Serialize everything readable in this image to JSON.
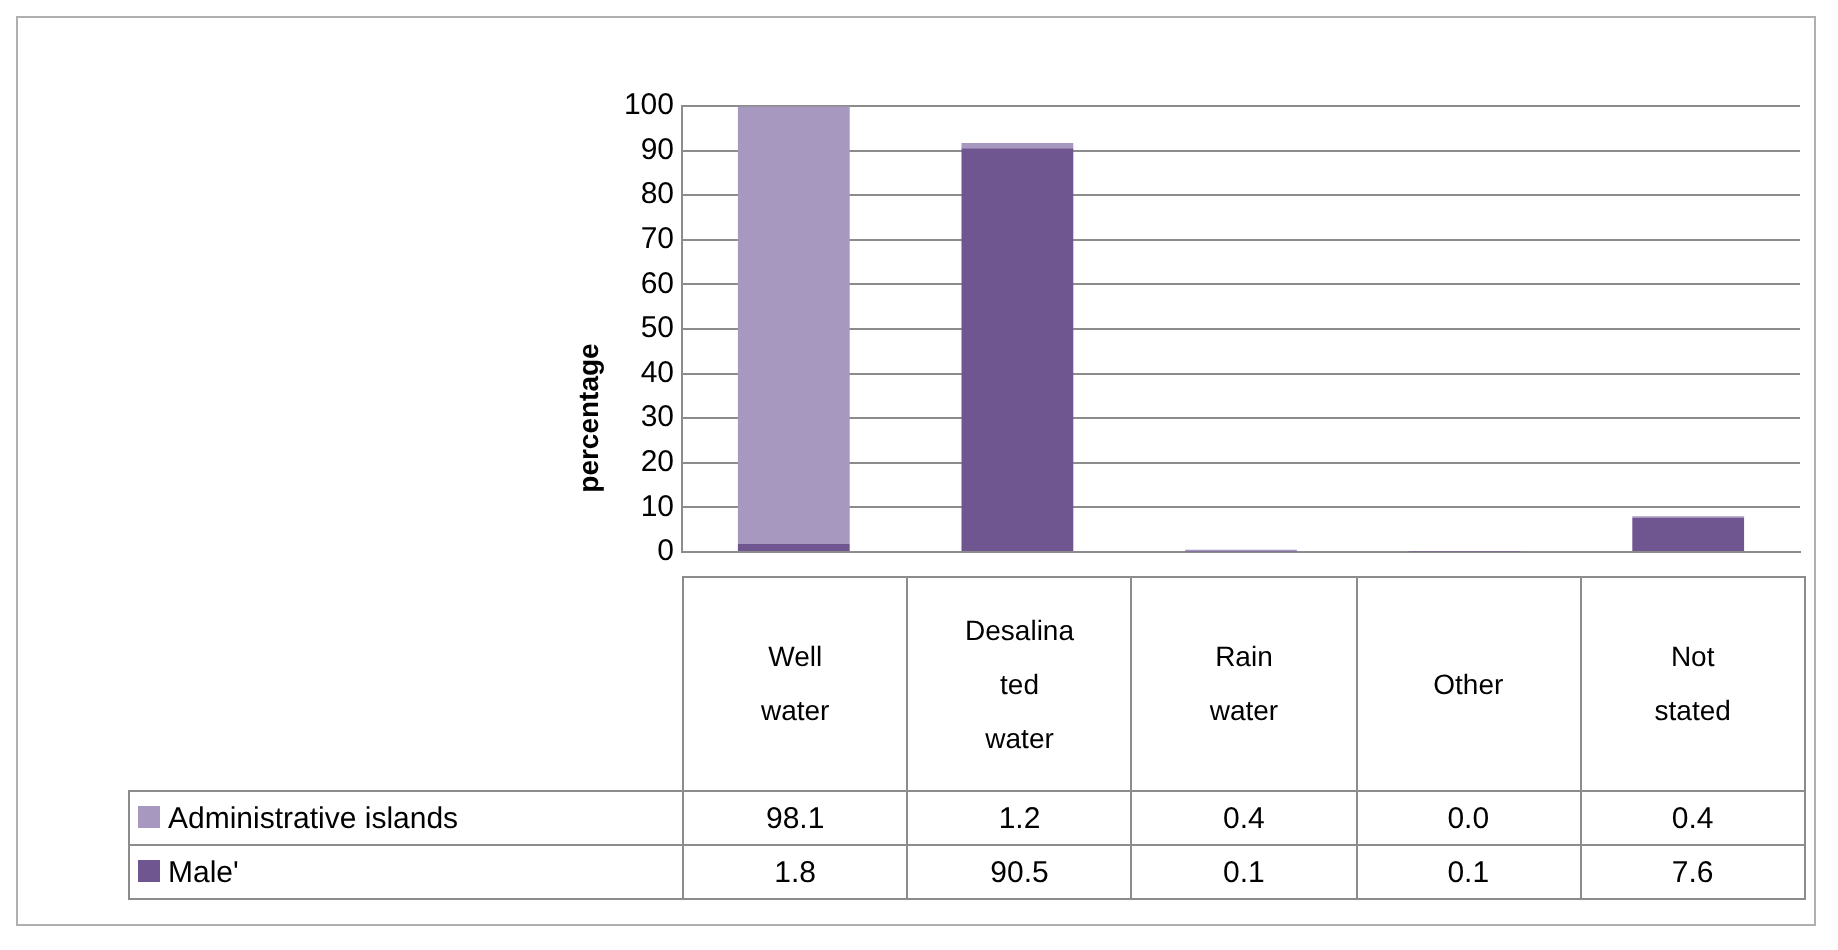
{
  "chart_data": {
    "type": "bar",
    "ylabel": "percentage",
    "stacked": true,
    "categories": [
      "Well water",
      "Desalinated water",
      "Rain water",
      "Other",
      "Not stated"
    ],
    "series": [
      {
        "name": "Male'",
        "color": "#6f5690",
        "values": [
          1.8,
          90.5,
          0.1,
          0.1,
          7.6
        ],
        "value_labels": [
          "1.8",
          "90.5",
          "0.1",
          "0.1",
          "7.6"
        ]
      },
      {
        "name": "Administrative islands",
        "color": "#a698bf",
        "values": [
          98.1,
          1.2,
          0.4,
          0.0,
          0.4
        ],
        "value_labels": [
          "98.1",
          "1.2",
          "0.4",
          "0.0",
          "0.4"
        ]
      }
    ],
    "ylim": [
      0,
      100
    ],
    "yticks": [
      0,
      10,
      20,
      30,
      40,
      50,
      60,
      70,
      80,
      90,
      100
    ],
    "grid": "y",
    "legend": "bottom left"
  }
}
